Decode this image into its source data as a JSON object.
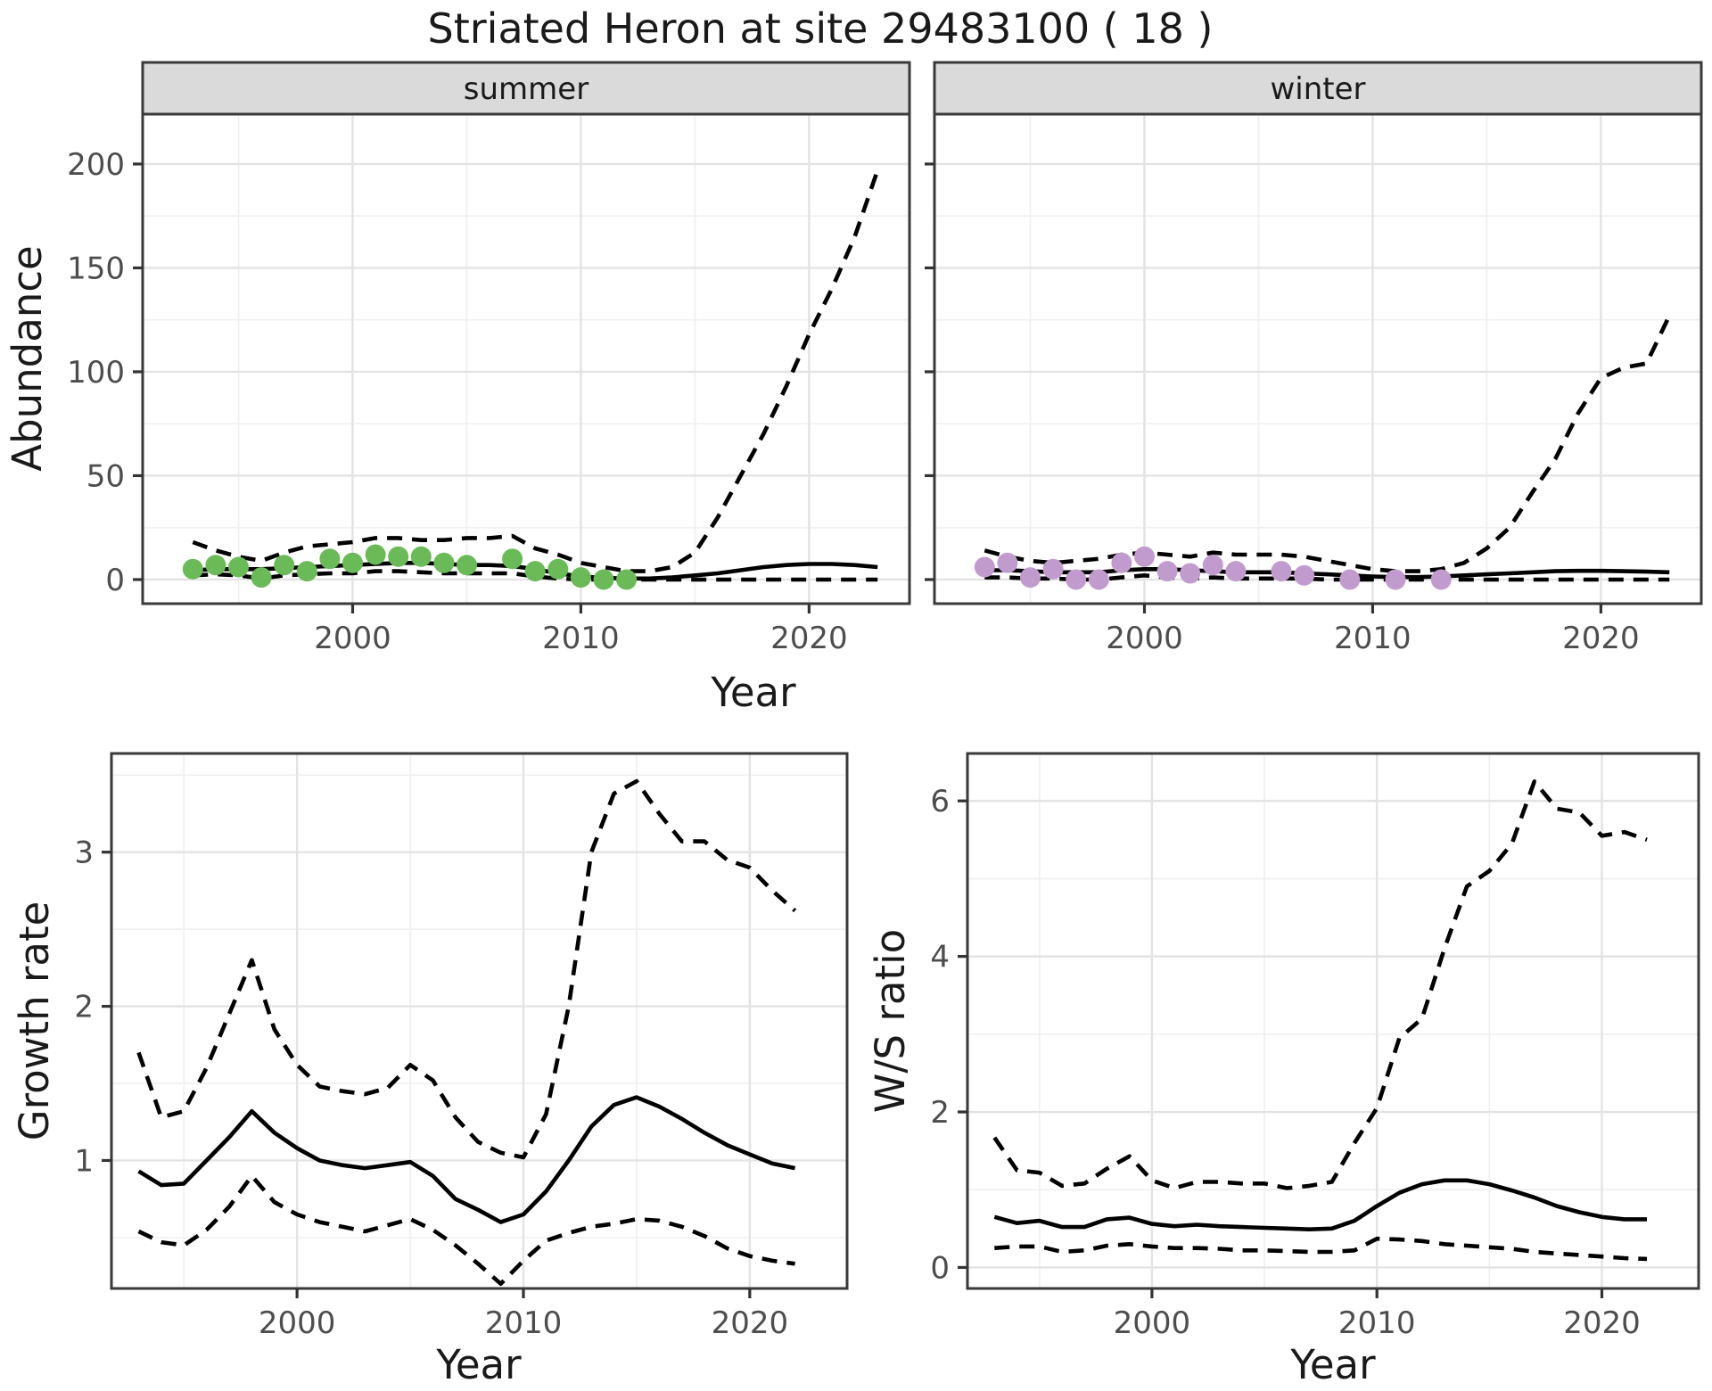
{
  "figure": {
    "title": "Striated Heron at site 29483100 ( 18 )"
  },
  "colors": {
    "summer_point": "#6abb58",
    "winter_point": "#c29bce",
    "line": "#000000",
    "strip_bg": "#dadada",
    "panel_border": "#3a3a3a",
    "grid_major": "#e3e3e3",
    "grid_minor": "#f0f0f0",
    "axis_text": "#4d4d4d",
    "tick_mark": "#333333"
  },
  "chart_data": [
    {
      "type": "line+scatter",
      "facet_label": "summer",
      "xlabel": "Year",
      "ylabel": "Abundance",
      "xlim": [
        1990.8,
        2024.4
      ],
      "ylim": [
        -11.6,
        224
      ],
      "xticks": [
        2000,
        2010,
        2020
      ],
      "xticks_minor": [
        1995,
        2005,
        2015
      ],
      "yticks": [
        0,
        50,
        100,
        150,
        200
      ],
      "yticks_minor": [
        25,
        75,
        125,
        175
      ],
      "grid": true,
      "legend": "none",
      "points": {
        "name": "summer-observed-abundance",
        "color": "#6abb58",
        "x": [
          1993,
          1994,
          1995,
          1996,
          1997,
          1998,
          1999,
          2000,
          2001,
          2002,
          2003,
          2004,
          2005,
          2007,
          2008,
          2009,
          2010,
          2011,
          2012
        ],
        "y": [
          5,
          7,
          6,
          1,
          7,
          4,
          10,
          8,
          12,
          11,
          11,
          8,
          7,
          10,
          4,
          5,
          1,
          0,
          0
        ]
      },
      "series": [
        {
          "name": "fit",
          "style": "solid",
          "x": [
            1993,
            1994,
            1995,
            1996,
            1997,
            1998,
            1999,
            2000,
            2001,
            2002,
            2003,
            2004,
            2005,
            2006,
            2007,
            2008,
            2009,
            2010,
            2011,
            2012,
            2013,
            2014,
            2015,
            2016,
            2017,
            2018,
            2019,
            2020,
            2021,
            2022,
            2023
          ],
          "y": [
            4.5,
            5,
            5,
            5,
            5.5,
            6,
            6.5,
            7,
            7.5,
            8,
            8,
            7.5,
            7,
            7,
            6.5,
            5,
            3,
            1.5,
            0.8,
            0.5,
            0.5,
            1,
            2,
            3,
            4.5,
            6,
            7,
            7.5,
            7.5,
            7,
            6
          ]
        },
        {
          "name": "upper-ci",
          "style": "dashed",
          "x": [
            1993,
            1994,
            1995,
            1996,
            1997,
            1998,
            1999,
            2000,
            2001,
            2002,
            2003,
            2004,
            2005,
            2006,
            2007,
            2008,
            2009,
            2010,
            2011,
            2012,
            2013,
            2014,
            2015,
            2016,
            2017,
            2018,
            2019,
            2020,
            2021,
            2022,
            2023
          ],
          "y": [
            18,
            14,
            11,
            9,
            13,
            16,
            17,
            18,
            20,
            20,
            19,
            19,
            20,
            20,
            21,
            15,
            12,
            8,
            6,
            4,
            4,
            6,
            13,
            30,
            50,
            70,
            93,
            118,
            140,
            165,
            197
          ]
        },
        {
          "name": "lower-ci",
          "style": "dashed",
          "x": [
            1993,
            1994,
            1995,
            1996,
            1997,
            1998,
            1999,
            2000,
            2001,
            2002,
            2003,
            2004,
            2005,
            2006,
            2007,
            2008,
            2009,
            2010,
            2011,
            2012,
            2013,
            2014,
            2015,
            2016,
            2017,
            2018,
            2019,
            2020,
            2021,
            2022,
            2023
          ],
          "y": [
            2,
            2.5,
            2,
            0.5,
            2,
            2.5,
            3,
            3,
            4,
            4,
            3.5,
            3,
            3,
            3,
            3,
            1.5,
            0.5,
            0,
            0,
            0,
            0,
            0,
            0,
            0,
            0,
            0,
            0,
            0,
            0,
            0,
            0
          ]
        }
      ]
    },
    {
      "type": "line+scatter",
      "facet_label": "winter",
      "xlabel": "Year",
      "ylabel": "Abundance",
      "xlim": [
        1990.8,
        2024.4
      ],
      "ylim": [
        -11.6,
        224
      ],
      "xticks": [
        2000,
        2010,
        2020
      ],
      "xticks_minor": [
        1995,
        2005,
        2015
      ],
      "yticks": [
        0,
        50,
        100,
        150,
        200
      ],
      "yticks_minor": [
        25,
        75,
        125,
        175
      ],
      "grid": true,
      "legend": "none",
      "points": {
        "name": "winter-observed-abundance",
        "color": "#c29bce",
        "x": [
          1993,
          1994,
          1995,
          1996,
          1997,
          1998,
          1999,
          2000,
          2001,
          2002,
          2003,
          2004,
          2006,
          2007,
          2009,
          2011,
          2013
        ],
        "y": [
          6,
          8,
          1,
          5,
          0,
          0,
          8,
          11,
          4,
          3,
          7,
          4,
          4,
          2,
          0,
          0,
          0
        ]
      },
      "series": [
        {
          "name": "fit",
          "style": "solid",
          "x": [
            1993,
            1994,
            1995,
            1996,
            1997,
            1998,
            1999,
            2000,
            2001,
            2002,
            2003,
            2004,
            2005,
            2006,
            2007,
            2008,
            2009,
            2010,
            2011,
            2012,
            2013,
            2014,
            2015,
            2016,
            2017,
            2018,
            2019,
            2020,
            2021,
            2022,
            2023
          ],
          "y": [
            4.5,
            4.5,
            4,
            3.5,
            3.5,
            3.5,
            4.5,
            5,
            5,
            4.5,
            4,
            3.5,
            3.5,
            3.5,
            3,
            2.5,
            2,
            1.5,
            1.2,
            1.2,
            1.5,
            2,
            2.5,
            3,
            3.5,
            4,
            4.2,
            4.2,
            4,
            3.8,
            3.5
          ]
        },
        {
          "name": "upper-ci",
          "style": "dashed",
          "x": [
            1993,
            1994,
            1995,
            1996,
            1997,
            1998,
            1999,
            2000,
            2001,
            2002,
            2003,
            2004,
            2005,
            2006,
            2007,
            2008,
            2009,
            2010,
            2011,
            2012,
            2013,
            2014,
            2015,
            2016,
            2017,
            2018,
            2019,
            2020,
            2021,
            2022,
            2023
          ],
          "y": [
            14,
            11,
            9,
            8,
            9,
            10,
            12,
            13,
            12,
            11,
            13,
            12,
            12,
            12,
            11,
            9,
            7,
            5,
            4,
            4,
            5,
            8,
            15,
            25,
            42,
            58,
            80,
            97,
            102,
            104,
            127
          ]
        },
        {
          "name": "lower-ci",
          "style": "dashed",
          "x": [
            1993,
            1994,
            1995,
            1996,
            1997,
            1998,
            1999,
            2000,
            2001,
            2002,
            2003,
            2004,
            2005,
            2006,
            2007,
            2008,
            2009,
            2010,
            2011,
            2012,
            2013,
            2014,
            2015,
            2016,
            2017,
            2018,
            2019,
            2020,
            2021,
            2022,
            2023
          ],
          "y": [
            1,
            1,
            0.5,
            0.5,
            0,
            0,
            1,
            2,
            1,
            0.5,
            1,
            0.5,
            0.5,
            0.5,
            0.5,
            0,
            0,
            0,
            0,
            0,
            0,
            0,
            0,
            0,
            0,
            0,
            0,
            0,
            0,
            0,
            0
          ]
        }
      ]
    },
    {
      "type": "line",
      "facet_label": "",
      "xlabel": "Year",
      "ylabel": "Growth rate",
      "xlim": [
        1991.8,
        2024.3
      ],
      "ylim": [
        0.17,
        3.64
      ],
      "xticks": [
        2000,
        2010,
        2020
      ],
      "xticks_minor": [
        1995,
        2005,
        2015
      ],
      "yticks": [
        1,
        2,
        3
      ],
      "yticks_minor": [
        0.5,
        1.5,
        2.5,
        3.5
      ],
      "grid": true,
      "legend": "none",
      "series": [
        {
          "name": "growth-rate",
          "style": "solid",
          "x": [
            1993,
            1994,
            1995,
            1996,
            1997,
            1998,
            1999,
            2000,
            2001,
            2002,
            2003,
            2004,
            2005,
            2006,
            2007,
            2008,
            2009,
            2010,
            2011,
            2012,
            2013,
            2014,
            2015,
            2016,
            2017,
            2018,
            2019,
            2020,
            2021,
            2022
          ],
          "y": [
            0.93,
            0.84,
            0.85,
            1.0,
            1.15,
            1.32,
            1.18,
            1.08,
            1.0,
            0.97,
            0.95,
            0.97,
            0.99,
            0.9,
            0.75,
            0.68,
            0.6,
            0.65,
            0.8,
            1.0,
            1.22,
            1.36,
            1.41,
            1.35,
            1.27,
            1.18,
            1.1,
            1.04,
            0.98,
            0.95
          ]
        },
        {
          "name": "upper-ci",
          "style": "dashed",
          "x": [
            1993,
            1994,
            1995,
            1996,
            1997,
            1998,
            1999,
            2000,
            2001,
            2002,
            2003,
            2004,
            2005,
            2006,
            2007,
            2008,
            2009,
            2010,
            2011,
            2012,
            2013,
            2014,
            2015,
            2016,
            2017,
            2018,
            2019,
            2020,
            2021,
            2022
          ],
          "y": [
            1.7,
            1.28,
            1.32,
            1.6,
            1.95,
            2.3,
            1.85,
            1.62,
            1.48,
            1.45,
            1.43,
            1.47,
            1.62,
            1.52,
            1.28,
            1.12,
            1.05,
            1.02,
            1.3,
            2.0,
            3.0,
            3.38,
            3.46,
            3.25,
            3.07,
            3.07,
            2.95,
            2.9,
            2.75,
            2.62
          ]
        },
        {
          "name": "lower-ci",
          "style": "dashed",
          "x": [
            1993,
            1994,
            1995,
            1996,
            1997,
            1998,
            1999,
            2000,
            2001,
            2002,
            2003,
            2004,
            2005,
            2006,
            2007,
            2008,
            2009,
            2010,
            2011,
            2012,
            2013,
            2014,
            2015,
            2016,
            2017,
            2018,
            2019,
            2020,
            2021,
            2022
          ],
          "y": [
            0.54,
            0.47,
            0.45,
            0.55,
            0.7,
            0.9,
            0.73,
            0.65,
            0.6,
            0.57,
            0.54,
            0.58,
            0.62,
            0.55,
            0.45,
            0.33,
            0.2,
            0.35,
            0.48,
            0.53,
            0.57,
            0.59,
            0.62,
            0.61,
            0.57,
            0.51,
            0.43,
            0.38,
            0.35,
            0.33
          ]
        }
      ]
    },
    {
      "type": "line",
      "facet_label": "",
      "xlabel": "Year",
      "ylabel": "W/S ratio",
      "xlim": [
        1991.8,
        2024.3
      ],
      "ylim": [
        -0.27,
        6.61
      ],
      "xticks": [
        2000,
        2010,
        2020
      ],
      "xticks_minor": [
        1995,
        2005,
        2015
      ],
      "yticks": [
        0,
        2,
        4,
        6
      ],
      "yticks_minor": [
        1,
        3,
        5
      ],
      "grid": true,
      "legend": "none",
      "series": [
        {
          "name": "ws-ratio",
          "style": "solid",
          "x": [
            1993,
            1994,
            1995,
            1996,
            1997,
            1998,
            1999,
            2000,
            2001,
            2002,
            2003,
            2004,
            2005,
            2006,
            2007,
            2008,
            2009,
            2010,
            2011,
            2012,
            2013,
            2014,
            2015,
            2016,
            2017,
            2018,
            2019,
            2020,
            2021,
            2022
          ],
          "y": [
            0.65,
            0.57,
            0.6,
            0.52,
            0.52,
            0.62,
            0.64,
            0.56,
            0.53,
            0.55,
            0.53,
            0.52,
            0.51,
            0.5,
            0.49,
            0.5,
            0.6,
            0.79,
            0.96,
            1.07,
            1.12,
            1.12,
            1.07,
            0.99,
            0.9,
            0.79,
            0.71,
            0.65,
            0.62,
            0.62
          ]
        },
        {
          "name": "upper-ci",
          "style": "dashed",
          "x": [
            1993,
            1994,
            1995,
            1996,
            1997,
            1998,
            1999,
            2000,
            2001,
            2002,
            2003,
            2004,
            2005,
            2006,
            2007,
            2008,
            2009,
            2010,
            2011,
            2012,
            2013,
            2014,
            2015,
            2016,
            2017,
            2018,
            2019,
            2020,
            2021,
            2022
          ],
          "y": [
            1.67,
            1.25,
            1.22,
            1.05,
            1.08,
            1.27,
            1.43,
            1.12,
            1.02,
            1.1,
            1.1,
            1.08,
            1.08,
            1.02,
            1.05,
            1.1,
            1.6,
            2.05,
            2.95,
            3.2,
            4.1,
            4.9,
            5.1,
            5.45,
            6.25,
            5.9,
            5.85,
            5.55,
            5.6,
            5.5
          ]
        },
        {
          "name": "lower-ci",
          "style": "dashed",
          "x": [
            1993,
            1994,
            1995,
            1996,
            1997,
            1998,
            1999,
            2000,
            2001,
            2002,
            2003,
            2004,
            2005,
            2006,
            2007,
            2008,
            2009,
            2010,
            2011,
            2012,
            2013,
            2014,
            2015,
            2016,
            2017,
            2018,
            2019,
            2020,
            2021,
            2022
          ],
          "y": [
            0.25,
            0.27,
            0.27,
            0.2,
            0.22,
            0.28,
            0.3,
            0.27,
            0.25,
            0.25,
            0.24,
            0.22,
            0.22,
            0.21,
            0.2,
            0.2,
            0.22,
            0.37,
            0.36,
            0.34,
            0.3,
            0.28,
            0.26,
            0.24,
            0.2,
            0.18,
            0.16,
            0.14,
            0.12,
            0.11
          ]
        }
      ]
    }
  ]
}
